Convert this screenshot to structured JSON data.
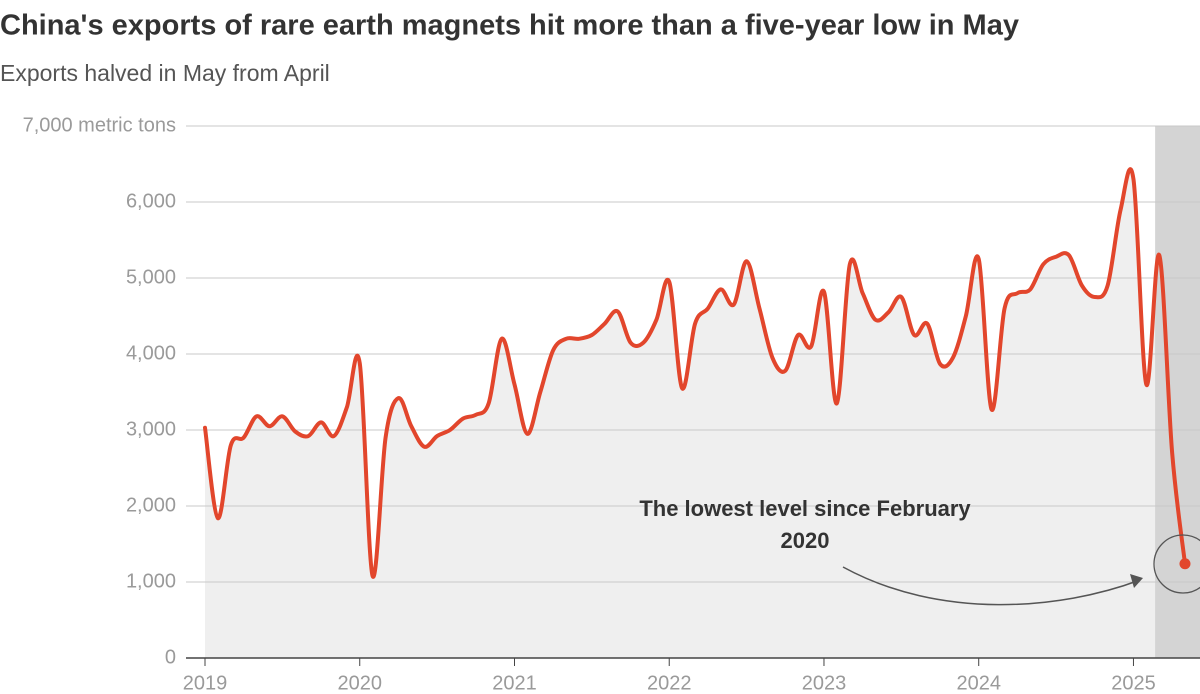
{
  "chart_data": {
    "type": "line",
    "title": "China's exports of rare earth magnets hit more than a five-year low in May",
    "subtitle": "Exports halved in May from April",
    "annotation": "The lowest level since February 2020",
    "x": [
      2019,
      2019.083,
      2019.167,
      2019.25,
      2019.333,
      2019.417,
      2019.5,
      2019.583,
      2019.667,
      2019.75,
      2019.833,
      2019.917,
      2020,
      2020.083,
      2020.167,
      2020.25,
      2020.333,
      2020.417,
      2020.5,
      2020.583,
      2020.667,
      2020.75,
      2020.833,
      2020.917,
      2021,
      2021.083,
      2021.167,
      2021.25,
      2021.333,
      2021.417,
      2021.5,
      2021.583,
      2021.667,
      2021.75,
      2021.833,
      2021.917,
      2022,
      2022.083,
      2022.167,
      2022.25,
      2022.333,
      2022.417,
      2022.5,
      2022.583,
      2022.667,
      2022.75,
      2022.833,
      2022.917,
      2023,
      2023.083,
      2023.167,
      2023.25,
      2023.333,
      2023.417,
      2023.5,
      2023.583,
      2023.667,
      2023.75,
      2023.833,
      2023.917,
      2024,
      2024.083,
      2024.167,
      2024.25,
      2024.333,
      2024.417,
      2024.5,
      2024.583,
      2024.667,
      2024.75,
      2024.833,
      2024.917,
      2025,
      2025.083,
      2025.167,
      2025.25,
      2025.333
    ],
    "series": [
      {
        "color": "#e2462c",
        "values": [
          3030,
          1840,
          2800,
          2900,
          3180,
          3050,
          3180,
          2980,
          2920,
          3100,
          2920,
          3300,
          3880,
          1080,
          2900,
          3420,
          3050,
          2780,
          2920,
          3000,
          3150,
          3200,
          3350,
          4200,
          3600,
          2950,
          3500,
          4050,
          4200,
          4200,
          4250,
          4400,
          4560,
          4150,
          4150,
          4450,
          4950,
          3550,
          4400,
          4600,
          4850,
          4650,
          5220,
          4600,
          3950,
          3780,
          4250,
          4100,
          4820,
          3350,
          5180,
          4800,
          4450,
          4550,
          4750,
          4250,
          4400,
          3870,
          3950,
          4500,
          5250,
          3270,
          4600,
          4800,
          4850,
          5180,
          5280,
          5300,
          4900,
          4750,
          4900,
          5900,
          6300,
          3600,
          5300,
          2700,
          1240
        ]
      }
    ],
    "xlim": [
      2019,
      2025.43
    ],
    "xticks": [
      2019,
      2020,
      2021,
      2022,
      2023,
      2024,
      2025
    ],
    "ylim": [
      0,
      7000
    ],
    "yticks": [
      0,
      {
        "value": 1000,
        "label": "1,000"
      },
      {
        "value": 2000,
        "label": "2,000"
      },
      {
        "value": 3000,
        "label": "3,000"
      },
      {
        "value": 4000,
        "label": "4,000"
      },
      {
        "value": 5000,
        "label": "5,000"
      },
      {
        "value": 6000,
        "label": "6,000"
      },
      {
        "value": 7000,
        "label": "7,000 metric tons"
      }
    ],
    "shaded_range": [
      2025.14,
      2025.43
    ],
    "grid": true
  }
}
